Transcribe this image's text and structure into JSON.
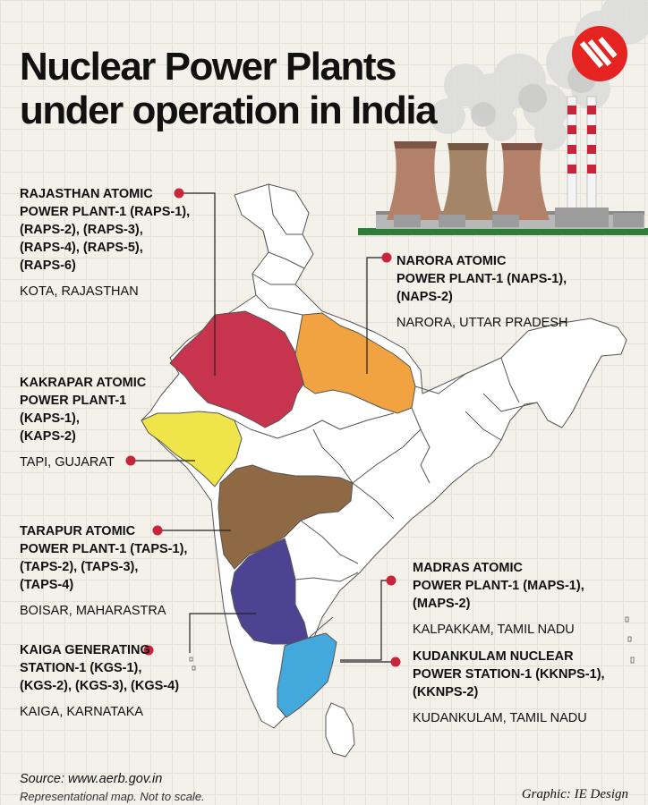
{
  "title": {
    "line1": "Nuclear Power Plants",
    "line2": "under operation in India"
  },
  "brand": {
    "logo_icon": "ie-logo-icon",
    "logo_color": "#e52421"
  },
  "illustration": {
    "icon": "cooling-towers-icon"
  },
  "colors": {
    "rajasthan": "#c8344e",
    "uttar_pradesh": "#f0a340",
    "gujarat": "#f0e44b",
    "maharashtra": "#8f6844",
    "karnataka": "#4e4392",
    "tamil_nadu": "#43a9dc",
    "marker": "#c8243b"
  },
  "plants": {
    "rajasthan": {
      "name_lines": [
        "RAJASTHAN ATOMIC",
        "POWER PLANT-1 (RAPS-1),",
        "(RAPS-2), (RAPS-3),",
        "(RAPS-4),  (RAPS-5),",
        "(RAPS-6)"
      ],
      "location": "KOTA, RAJASTHAN"
    },
    "narora": {
      "name_lines": [
        "NARORA ATOMIC",
        "POWER PLANT-1 (NAPS-1),",
        "(NAPS-2)"
      ],
      "location": "NARORA, UTTAR PRADESH"
    },
    "kakrapar": {
      "name_lines": [
        "KAKRAPAR ATOMIC",
        "POWER PLANT-1",
        "(KAPS-1),",
        "(KAPS-2)"
      ],
      "location": "TAPI, GUJARAT"
    },
    "tarapur": {
      "name_lines": [
        "TARAPUR ATOMIC",
        "POWER PLANT-1 (TAPS-1),",
        "(TAPS-2), (TAPS-3),",
        "(TAPS-4)"
      ],
      "location": "BOISAR, MAHARASTRA"
    },
    "madras": {
      "name_lines": [
        "MADRAS ATOMIC",
        "POWER PLANT-1 (MAPS-1),",
        "(MAPS-2)"
      ],
      "location": "KALPAKKAM, TAMIL NADU"
    },
    "kaiga": {
      "name_lines": [
        "KAIGA GENERATING",
        "STATION-1 (KGS-1),",
        "(KGS-2), (KGS-3), (KGS-4)"
      ],
      "location": "KAIGA, KARNATAKA"
    },
    "kudankulam": {
      "name_lines": [
        "KUDANKULAM NUCLEAR",
        "POWER STATION-1 (KKNPS-1),",
        "(KKNPS-2)"
      ],
      "location": "KUDANKULAM, TAMIL NADU"
    }
  },
  "footer": {
    "source": "Source: www.aerb.gov.in",
    "note": "Representational map. Not to scale.",
    "credit": "Graphic: IE Design"
  }
}
